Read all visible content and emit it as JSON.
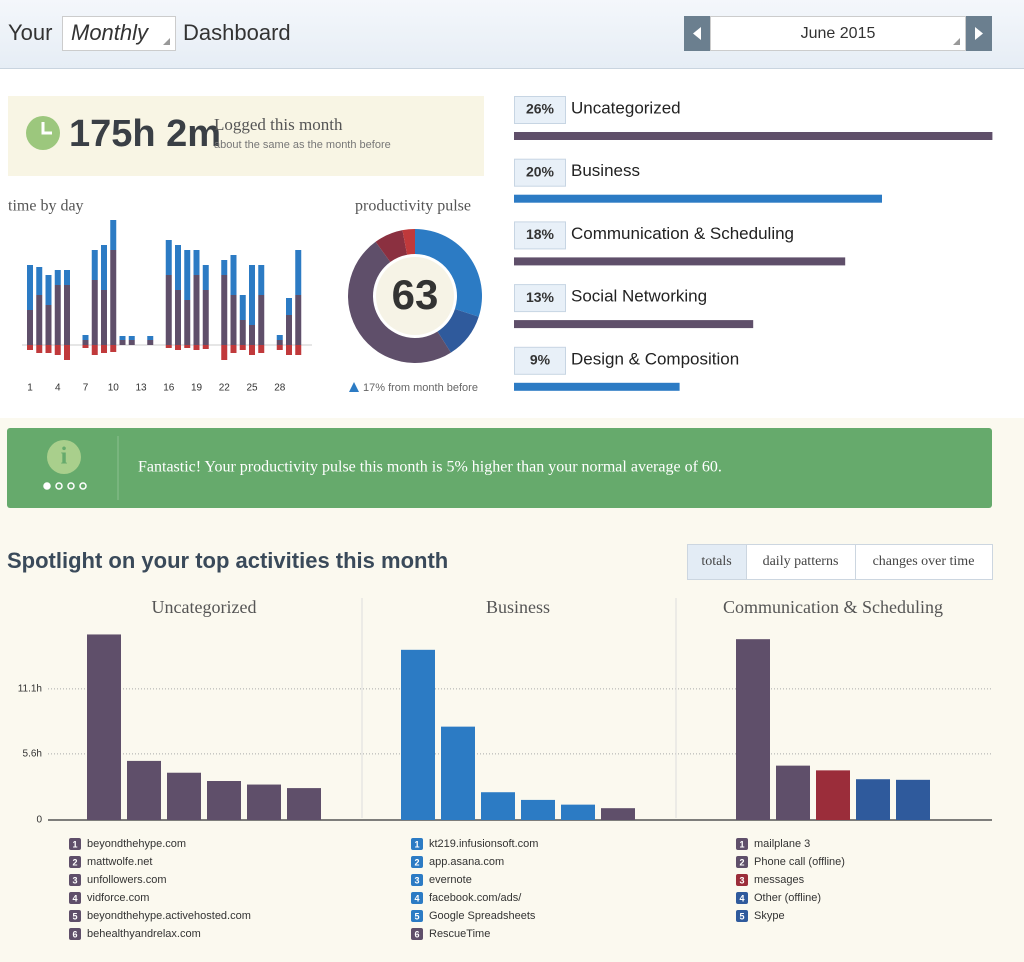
{
  "header": {
    "prefix": "Your",
    "period": "Monthly",
    "suffix": "Dashboard",
    "month": "June 2015"
  },
  "summary": {
    "total": "175h 2m",
    "label": "Logged this month",
    "note": "about the same as the month before"
  },
  "time_by_day": {
    "type": "bar",
    "stacked": true,
    "title": "time by day",
    "categories": [
      1,
      null,
      null,
      4,
      null,
      null,
      7,
      null,
      null,
      10,
      null,
      null,
      13,
      null,
      null,
      16,
      null,
      null,
      19,
      null,
      null,
      22,
      null,
      null,
      25,
      null,
      null,
      28,
      null,
      null
    ],
    "series": [
      {
        "color": "#5f4f6a",
        "values": [
          3.5,
          5.0,
          4.0,
          6.0,
          6.0,
          0,
          0.5,
          6.5,
          5.5,
          9.5,
          0.5,
          0.5,
          0,
          0.5,
          0,
          7.0,
          5.5,
          4.5,
          7.0,
          5.5,
          0,
          7.0,
          5.0,
          2.5,
          2.0,
          5.0,
          0,
          0.5,
          3.0,
          5.0
        ]
      },
      {
        "color": "#2c7bc4",
        "values": [
          4.5,
          2.8,
          3.0,
          1.5,
          1.5,
          0,
          0.5,
          3.0,
          4.5,
          3.0,
          0.4,
          0.4,
          0,
          0.4,
          0,
          3.5,
          4.5,
          5.0,
          2.5,
          2.5,
          0,
          1.5,
          4.0,
          2.5,
          6.0,
          3.0,
          0,
          0.5,
          1.7,
          4.5
        ]
      },
      {
        "color": "#c0393b",
        "values": [
          -0.5,
          -0.8,
          -0.8,
          -1.0,
          -1.5,
          0,
          -0.3,
          -1.0,
          -0.8,
          -0.7,
          0,
          0,
          0,
          0,
          0,
          -0.3,
          -0.5,
          -0.3,
          -0.5,
          -0.4,
          0,
          -1.5,
          -0.8,
          -0.5,
          -1.0,
          -0.8,
          0,
          -0.5,
          -1.0,
          -1.0
        ]
      }
    ]
  },
  "productivity_pulse": {
    "type": "donut",
    "title": "productivity pulse",
    "score": 63,
    "change": "17% from month before",
    "values": [
      30,
      11,
      49,
      7,
      3
    ],
    "colors": [
      "#2c7bc4",
      "#2f5a9c",
      "#5f4f6a",
      "#8b3040",
      "#c0393b"
    ]
  },
  "category_breakdown": {
    "type": "bar",
    "orientation": "horizontal",
    "categories": [
      "Uncategorized",
      "Business",
      "Communication & Scheduling",
      "Social Networking",
      "Design & Composition"
    ],
    "values": [
      26,
      20,
      18,
      13,
      9
    ],
    "value_labels": [
      "26%",
      "20%",
      "18%",
      "13%",
      "9%"
    ],
    "colors": [
      "#5f4f6a",
      "#2c7bc4",
      "#5f4f6a",
      "#5f4f6a",
      "#2c7bc4"
    ]
  },
  "notice": {
    "text": "Fantastic! Your productivity pulse this month is 5% higher than your normal average of 60."
  },
  "spotlight": {
    "title": "Spotlight on your top activities this month",
    "tabs": [
      "totals",
      "daily patterns",
      "changes over time"
    ],
    "active_tab": 0,
    "ylim": [
      0,
      16.5
    ],
    "yticks": [
      0,
      {
        "value": 5.6,
        "label": "5.6h"
      },
      {
        "value": 11.1,
        "label": "11.1h"
      }
    ],
    "charts": [
      {
        "type": "bar",
        "title": "Uncategorized",
        "categories": [
          "beyondthehype.com",
          "mattwolfe.net",
          "unfollowers.com",
          "vidforce.com",
          "beyondthehype.activehosted.com",
          "behealthyandrelax.com"
        ],
        "ranks": [
          1,
          2,
          3,
          4,
          5,
          6
        ],
        "values": [
          15.7,
          5.0,
          4.0,
          3.3,
          3.0,
          2.7
        ],
        "colors": [
          "#5f4f6a",
          "#5f4f6a",
          "#5f4f6a",
          "#5f4f6a",
          "#5f4f6a",
          "#5f4f6a"
        ]
      },
      {
        "type": "bar",
        "title": "Business",
        "categories": [
          "kt219.infusionsoft.com",
          "app.asana.com",
          "evernote",
          "facebook.com/ads/",
          "Google Spreadsheets",
          "RescueTime"
        ],
        "ranks": [
          1,
          2,
          3,
          4,
          5,
          6
        ],
        "values": [
          14.4,
          7.9,
          2.35,
          1.7,
          1.3,
          1.0
        ],
        "colors": [
          "#2c7bc4",
          "#2c7bc4",
          "#2c7bc4",
          "#2c7bc4",
          "#2c7bc4",
          "#5f4f6a"
        ]
      },
      {
        "type": "bar",
        "title": "Communication & Scheduling",
        "categories": [
          "mailplane 3",
          "Phone call (offline)",
          "messages",
          "Other (offline)",
          "Skype"
        ],
        "ranks": [
          1,
          2,
          3,
          4,
          5
        ],
        "values": [
          15.3,
          4.6,
          4.2,
          3.45,
          3.4
        ],
        "colors": [
          "#5f4f6a",
          "#5f4f6a",
          "#9b2d3a",
          "#2f5a9c",
          "#2f5a9c"
        ]
      }
    ]
  }
}
